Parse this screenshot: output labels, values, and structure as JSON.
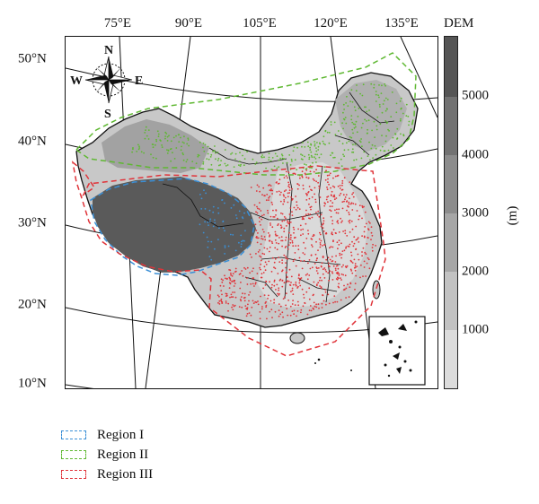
{
  "map": {
    "longitude_labels": [
      "75°E",
      "90°E",
      "105°E",
      "120°E",
      "135°E"
    ],
    "latitude_labels": [
      "50°N",
      "40°N",
      "30°N",
      "20°N",
      "10°N"
    ],
    "compass": {
      "north": "N",
      "south": "S",
      "east": "E",
      "west": "W"
    }
  },
  "colorbar": {
    "title": "DEM",
    "unit": "(m)",
    "ticks": [
      "5000",
      "4000",
      "3000",
      "2000",
      "1000"
    ],
    "colors": [
      "#dcdcdc",
      "#c2c2c2",
      "#a6a6a6",
      "#8c8c8c",
      "#727272",
      "#555555"
    ]
  },
  "legend": {
    "items": [
      {
        "label": "Region I",
        "color": "#3a8fd6"
      },
      {
        "label": "Region II",
        "color": "#5fb832"
      },
      {
        "label": "Region III",
        "color": "#e0343a"
      }
    ]
  }
}
